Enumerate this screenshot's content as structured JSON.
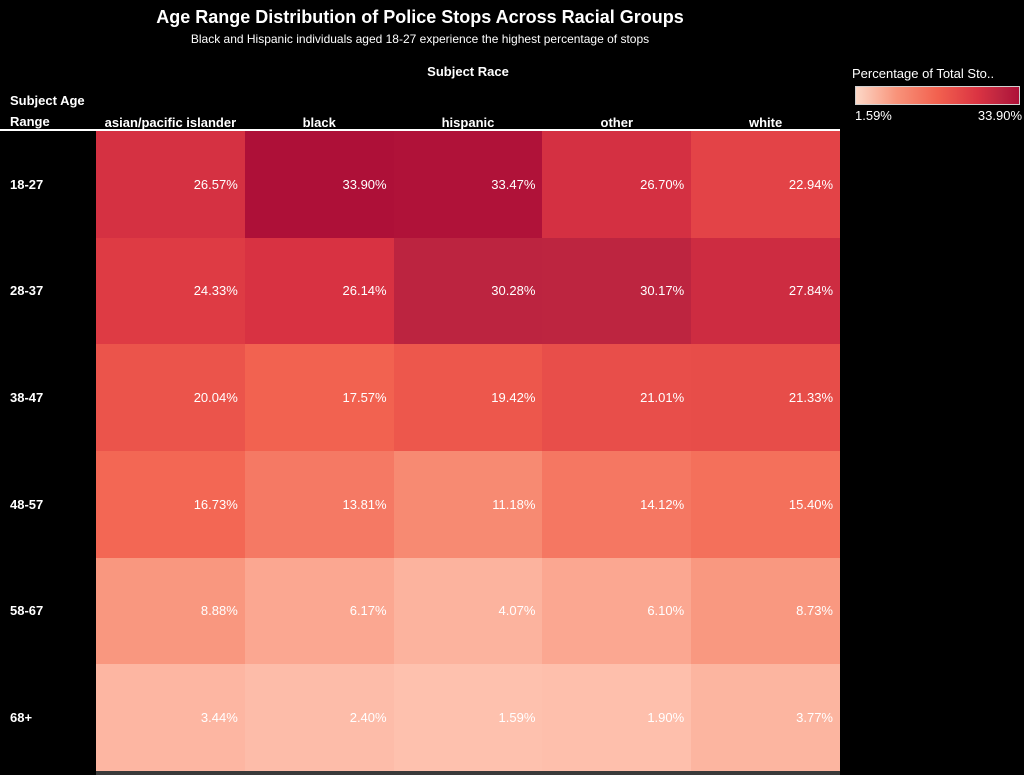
{
  "title": "Age Range Distribution of Police Stops Across Racial Groups",
  "subtitle": "Black and Hispanic individuals aged 18-27 experience the highest percentage of stops",
  "column_axis_title": "Subject Race",
  "row_axis_title": {
    "line1": "Subject Age",
    "line2": "Range"
  },
  "legend": {
    "title": "Percentage of Total Sto..",
    "min_label": "1.59%",
    "max_label": "33.90%"
  },
  "chart_data": {
    "type": "heatmap",
    "columns": [
      "asian/pacific islander",
      "black",
      "hispanic",
      "other",
      "white"
    ],
    "rows": [
      "18-27",
      "28-37",
      "38-47",
      "48-57",
      "58-67",
      "68+"
    ],
    "values": [
      [
        26.57,
        33.9,
        33.47,
        26.7,
        22.94
      ],
      [
        24.33,
        26.14,
        30.28,
        30.17,
        27.84
      ],
      [
        20.04,
        17.57,
        19.42,
        21.01,
        21.33
      ],
      [
        16.73,
        13.81,
        11.18,
        14.12,
        15.4
      ],
      [
        8.88,
        6.17,
        4.07,
        6.1,
        8.73
      ],
      [
        3.44,
        2.4,
        1.59,
        1.9,
        3.77
      ]
    ],
    "value_suffix": "%",
    "min": 1.59,
    "max": 33.9,
    "title": "Age Range Distribution of Police Stops Across Racial Groups",
    "xlabel": "Subject Race",
    "ylabel": "Subject Age Range",
    "legend_position": "top-right",
    "palette": [
      {
        "pos": 0.0,
        "color": "#fec1ae"
      },
      {
        "pos": 0.25,
        "color": "#f8937a"
      },
      {
        "pos": 0.5,
        "color": "#f2614f"
      },
      {
        "pos": 0.75,
        "color": "#da3342"
      },
      {
        "pos": 0.89,
        "color": "#bc2440"
      },
      {
        "pos": 1.0,
        "color": "#ae1038"
      }
    ],
    "legend_gradient_start": "#fcd8c7",
    "background_color": "#000000",
    "text_color": "#ffffff"
  }
}
